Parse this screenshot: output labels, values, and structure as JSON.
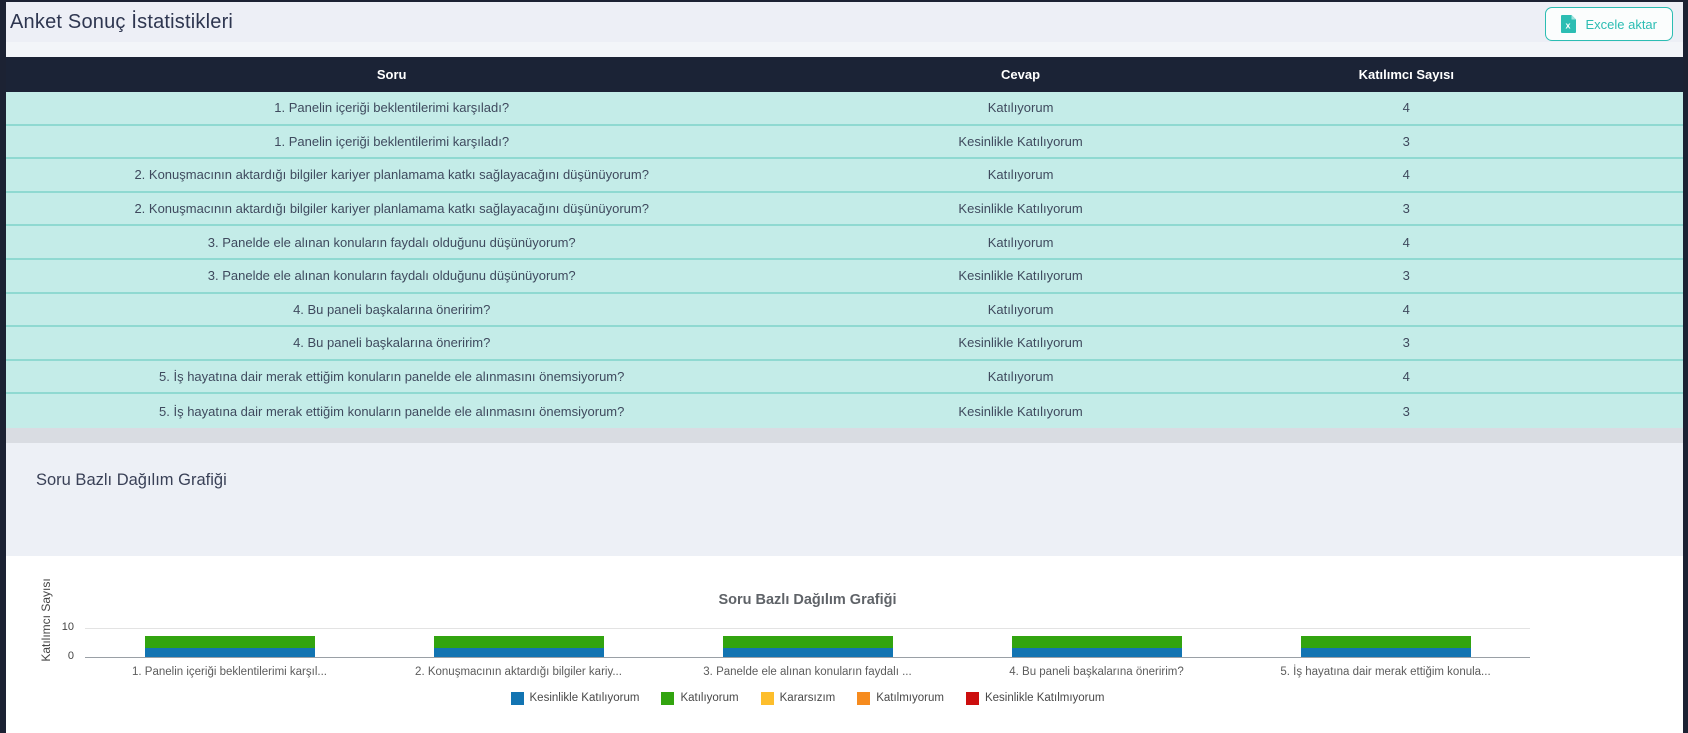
{
  "page": {
    "title": "Anket Sonuç İstatistikleri",
    "export_button_label": "Excele aktar"
  },
  "table": {
    "columns": [
      "Soru",
      "Cevap",
      "Katılımcı Sayısı"
    ],
    "rows": [
      {
        "soru": "1. Panelin içeriği beklentilerimi karşıladı?",
        "cevap": "Katılıyorum",
        "katilimci": "4"
      },
      {
        "soru": "1. Panelin içeriği beklentilerimi karşıladı?",
        "cevap": "Kesinlikle Katılıyorum",
        "katilimci": "3"
      },
      {
        "soru": "2. Konuşmacının aktardığı bilgiler kariyer planlamama katkı sağlayacağını düşünüyorum?",
        "cevap": "Katılıyorum",
        "katilimci": "4"
      },
      {
        "soru": "2. Konuşmacının aktardığı bilgiler kariyer planlamama katkı sağlayacağını düşünüyorum?",
        "cevap": "Kesinlikle Katılıyorum",
        "katilimci": "3"
      },
      {
        "soru": "3. Panelde ele alınan konuların faydalı olduğunu düşünüyorum?",
        "cevap": "Katılıyorum",
        "katilimci": "4"
      },
      {
        "soru": "3. Panelde ele alınan konuların faydalı olduğunu düşünüyorum?",
        "cevap": "Kesinlikle Katılıyorum",
        "katilimci": "3"
      },
      {
        "soru": "4. Bu paneli başkalarına öneririm?",
        "cevap": "Katılıyorum",
        "katilimci": "4"
      },
      {
        "soru": "4. Bu paneli başkalarına öneririm?",
        "cevap": "Kesinlikle Katılıyorum",
        "katilimci": "3"
      },
      {
        "soru": "5. İş hayatına dair merak ettiğim konuların panelde ele alınmasını önemsiyorum?",
        "cevap": "Katılıyorum",
        "katilimci": "4"
      },
      {
        "soru": "5. İş hayatına dair merak ettiğim konuların panelde ele alınmasını önemsiyorum?",
        "cevap": "Kesinlikle Katılıyorum",
        "katilimci": "3"
      }
    ]
  },
  "section": {
    "heading": "Soru Bazlı Dağılım Grafiği"
  },
  "chart_data": {
    "type": "bar",
    "stacked": true,
    "title": "Soru Bazlı Dağılım Grafiği",
    "xlabel": "",
    "ylabel": "Katılımcı Sayısı",
    "ylim": [
      0,
      10
    ],
    "yticks": [
      "0",
      "10"
    ],
    "grid": true,
    "legend_position": "bottom",
    "categories": [
      "1. Panelin içeriği beklentilerimi karşıladı?",
      "2. Konuşmacının aktardığı bilgiler kariyer planlamama katkı sağlayacağını düşünüyorum?",
      "3. Panelde ele alınan konuların faydalı olduğunu düşünüyorum?",
      "4. Bu paneli başkalarına öneririm?",
      "5. İş hayatına dair merak ettiğim konuların panelde ele alınmasını önemsiyorum?"
    ],
    "category_labels": [
      "1. Panelin içeriği beklentilerimi karşıl...",
      "2. Konuşmacının aktardığı bilgiler kariy...",
      "3. Panelde ele alınan konuların faydalı ...",
      "4. Bu paneli başkalarına öneririm?",
      "5. İş hayatına dair merak ettiğim konula..."
    ],
    "series": [
      {
        "name": "Kesinlikle Katılıyorum",
        "color": "#1274b2",
        "values": [
          3,
          3,
          3,
          3,
          3
        ]
      },
      {
        "name": "Katılıyorum",
        "color": "#32a40f",
        "values": [
          4,
          4,
          4,
          4,
          4
        ]
      },
      {
        "name": "Kararsızım",
        "color": "#fdbe2c",
        "values": [
          0,
          0,
          0,
          0,
          0
        ]
      },
      {
        "name": "Katılmıyorum",
        "color": "#f68b1e",
        "values": [
          0,
          0,
          0,
          0,
          0
        ]
      },
      {
        "name": "Kesinlikle Katılmıyorum",
        "color": "#cc0e0e",
        "values": [
          0,
          0,
          0,
          0,
          0
        ]
      }
    ]
  },
  "colors": {
    "accent_teal": "#2cbdb3",
    "table_header_bg": "#1b2336",
    "row_bg": "#c4ece8",
    "row_separator": "#8fd9d1",
    "window_edge": "#1c2233",
    "topbar_bg": "#edeff6",
    "section_bg": "#edf0f6"
  }
}
